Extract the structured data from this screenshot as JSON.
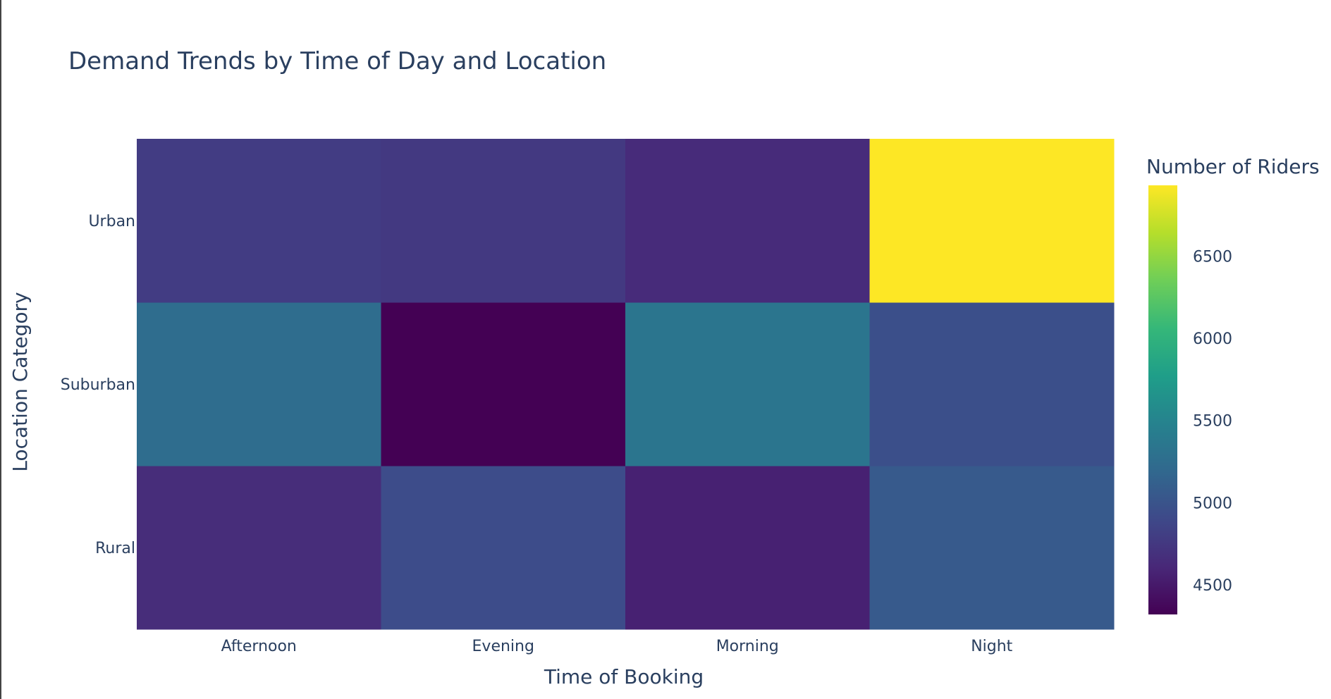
{
  "chart_data": {
    "type": "heatmap",
    "title": "Demand Trends by Time of Day and Location",
    "xlabel": "Time of Booking",
    "ylabel": "Location Category",
    "x": [
      "Afternoon",
      "Evening",
      "Morning",
      "Night"
    ],
    "y": [
      "Rural",
      "Suburban",
      "Urban"
    ],
    "z": [
      [
        4650,
        4930,
        4560,
        5060
      ],
      [
        5250,
        4320,
        5340,
        4960
      ],
      [
        4790,
        4760,
        4640,
        6930
      ]
    ],
    "colorbar": {
      "title": "Number of Riders",
      "range": [
        4320,
        6930
      ],
      "ticks": [
        4500,
        5000,
        5500,
        6000,
        6500
      ],
      "tick_labels": [
        "4500",
        "5000",
        "5500",
        "6000",
        "6500"
      ]
    },
    "colorscale": "Viridis",
    "colorscale_stops": [
      "#440154",
      "#482878",
      "#3e4989",
      "#31688e",
      "#26828e",
      "#1f9e89",
      "#35b779",
      "#6ece58",
      "#b5de2b",
      "#fde725"
    ]
  }
}
